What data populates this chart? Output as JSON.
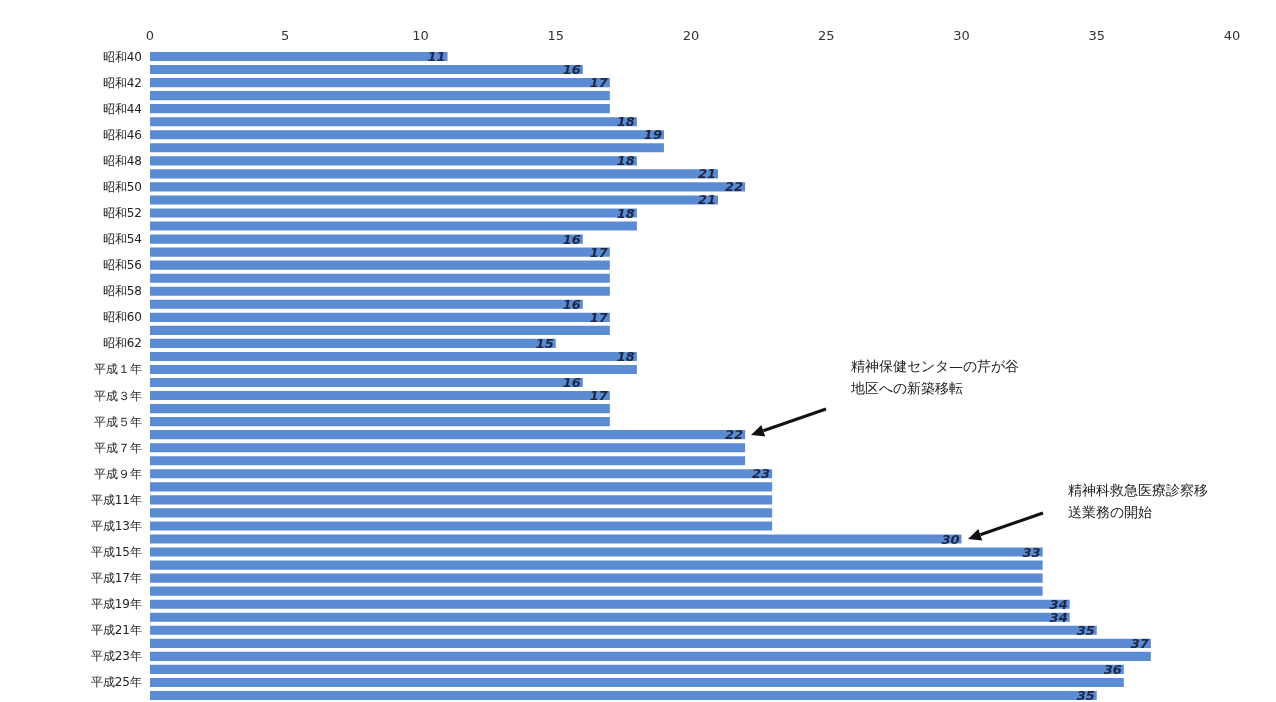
{
  "chart_data": {
    "type": "bar",
    "orientation": "horizontal",
    "categories": [
      "昭和40",
      null,
      "昭和42",
      null,
      "昭和44",
      null,
      "昭和46",
      null,
      "昭和48",
      null,
      "昭和50",
      null,
      "昭和52",
      null,
      "昭和54",
      null,
      "昭和56",
      null,
      "昭和58",
      null,
      "昭和60",
      null,
      "昭和62",
      null,
      "平成１年",
      null,
      "平成３年",
      null,
      "平成５年",
      null,
      "平成７年",
      null,
      "平成９年",
      null,
      "平成11年",
      null,
      "平成13年",
      null,
      "平成15年",
      null,
      "平成17年",
      null,
      "平成19年",
      null,
      "平成21年",
      null,
      "平成23年",
      null,
      "平成25年",
      null
    ],
    "values": [
      11,
      16,
      17,
      17,
      17,
      18,
      19,
      19,
      18,
      21,
      22,
      21,
      18,
      18,
      16,
      17,
      17,
      17,
      17,
      16,
      17,
      17,
      15,
      18,
      18,
      16,
      17,
      17,
      17,
      22,
      22,
      22,
      23,
      23,
      23,
      23,
      23,
      30,
      33,
      33,
      33,
      33,
      34,
      34,
      35,
      37,
      37,
      36,
      36,
      35
    ],
    "value_labels": [
      "11",
      "16",
      "17",
      null,
      null,
      "18",
      "19",
      null,
      "18",
      "21",
      "22",
      "21",
      "18",
      null,
      "16",
      "17",
      null,
      null,
      null,
      "16",
      "17",
      null,
      "15",
      "18",
      null,
      "16",
      "17",
      null,
      null,
      "22",
      null,
      null,
      "23",
      null,
      null,
      null,
      null,
      "30",
      "33",
      null,
      null,
      null,
      "34",
      "34",
      "35",
      "37",
      null,
      "36",
      null,
      "35"
    ],
    "color": "#5b8bd3",
    "xlim": [
      0,
      40
    ],
    "xticks": [
      0,
      5,
      10,
      15,
      20,
      25,
      30,
      35,
      40
    ],
    "grid": false,
    "annotations": [
      "精神保健センタ—の芹が谷地区への新築移転",
      "精神科救急医療診察移送業務の開始"
    ]
  }
}
